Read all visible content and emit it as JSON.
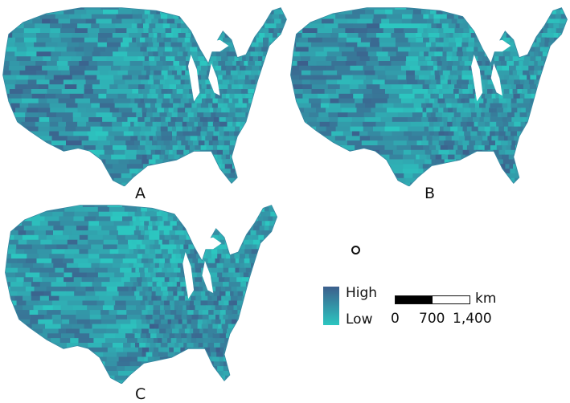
{
  "panels": [
    {
      "id": "a",
      "label": "A"
    },
    {
      "id": "b",
      "label": "B"
    },
    {
      "id": "c",
      "label": "C"
    }
  ],
  "legend": {
    "high_label": "High",
    "low_label": "Low",
    "colors": {
      "high": "#3c5f8c",
      "low": "#2cc6c0"
    }
  },
  "scale_bar": {
    "unit": "km",
    "ticks": [
      "0",
      "700",
      "1,400"
    ]
  },
  "north_indicator": "circle-icon"
}
